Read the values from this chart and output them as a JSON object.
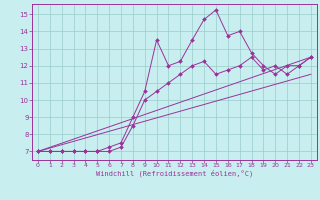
{
  "xlabel": "Windchill (Refroidissement éolien,°C)",
  "bg_color": "#c8eef0",
  "line_color": "#993399",
  "grid_color": "#99cccc",
  "xlim": [
    -0.5,
    23.5
  ],
  "ylim": [
    6.5,
    15.6
  ],
  "x_ticks": [
    0,
    1,
    2,
    3,
    4,
    5,
    6,
    7,
    8,
    9,
    10,
    11,
    12,
    13,
    14,
    15,
    16,
    17,
    18,
    19,
    20,
    21,
    22,
    23
  ],
  "y_ticks": [
    7,
    8,
    9,
    10,
    11,
    12,
    13,
    14,
    15
  ],
  "series": [
    {
      "x": [
        0,
        1,
        2,
        3,
        4,
        5,
        6,
        7,
        8,
        9,
        10,
        11,
        12,
        13,
        14,
        15,
        16,
        17,
        18,
        19,
        20,
        21,
        22,
        23
      ],
      "y": [
        7,
        7,
        7,
        7,
        7,
        7,
        7.25,
        7.5,
        9.0,
        10.5,
        13.5,
        12.0,
        12.25,
        13.5,
        14.7,
        15.25,
        13.75,
        14.0,
        12.75,
        12.0,
        11.5,
        12.0,
        12.0,
        12.5
      ],
      "marker": true
    },
    {
      "x": [
        0,
        1,
        2,
        3,
        4,
        5,
        6,
        7,
        8,
        9,
        10,
        11,
        12,
        13,
        14,
        15,
        16,
        17,
        18,
        19,
        20,
        21,
        22,
        23
      ],
      "y": [
        7,
        7,
        7,
        7,
        7,
        7,
        7,
        7.25,
        8.5,
        10.0,
        10.5,
        11.0,
        11.5,
        12.0,
        12.25,
        11.5,
        11.75,
        12.0,
        12.5,
        11.75,
        12.0,
        11.5,
        12.0,
        12.5
      ],
      "marker": true
    },
    {
      "x": [
        0,
        23
      ],
      "y": [
        7,
        12.5
      ],
      "marker": false
    },
    {
      "x": [
        0,
        23
      ],
      "y": [
        7,
        11.5
      ],
      "marker": false
    }
  ]
}
